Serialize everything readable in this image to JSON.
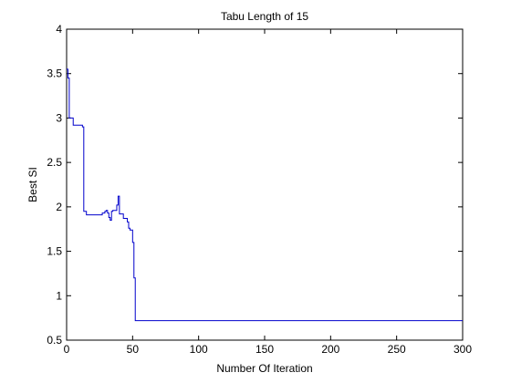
{
  "chart_data": {
    "type": "line",
    "title": "Tabu Length of 15",
    "xlabel": "Number Of Iteration",
    "ylabel": "Best SI",
    "xlim": [
      0,
      300
    ],
    "ylim": [
      0.5,
      4
    ],
    "xticks": [
      0,
      50,
      100,
      150,
      200,
      250,
      300
    ],
    "yticks": [
      0.5,
      1,
      1.5,
      2,
      2.5,
      3,
      3.5,
      4
    ],
    "xtick_labels": [
      "0",
      "50",
      "100",
      "150",
      "200",
      "250",
      "300"
    ],
    "ytick_labels": [
      "0.5",
      "1",
      "1.5",
      "2",
      "2.5",
      "3",
      "3.5",
      "4"
    ],
    "grid": false,
    "box": true,
    "line_color": "#0000cc",
    "series": [
      {
        "step": true,
        "x": [
          0,
          1,
          2,
          3,
          4,
          5,
          6,
          7,
          8,
          9,
          10,
          11,
          12,
          13,
          15,
          20,
          25,
          27,
          29,
          30,
          31,
          32,
          33,
          34,
          35,
          36,
          37,
          38,
          39,
          40,
          41,
          42,
          43,
          44,
          45,
          46,
          47,
          48,
          49,
          50,
          51,
          52,
          53,
          54,
          55,
          300
        ],
        "y": [
          3.55,
          3.45,
          3.0,
          3.0,
          3.0,
          2.92,
          2.92,
          2.92,
          2.92,
          2.92,
          2.92,
          2.92,
          2.9,
          1.95,
          1.91,
          1.91,
          1.91,
          1.93,
          1.95,
          1.96,
          1.93,
          1.88,
          1.85,
          1.95,
          1.96,
          1.96,
          1.96,
          2.02,
          2.12,
          1.92,
          1.92,
          1.92,
          1.87,
          1.87,
          1.87,
          1.83,
          1.76,
          1.74,
          1.74,
          1.6,
          1.2,
          0.72,
          0.72,
          0.72,
          0.72,
          0.72
        ]
      }
    ]
  }
}
